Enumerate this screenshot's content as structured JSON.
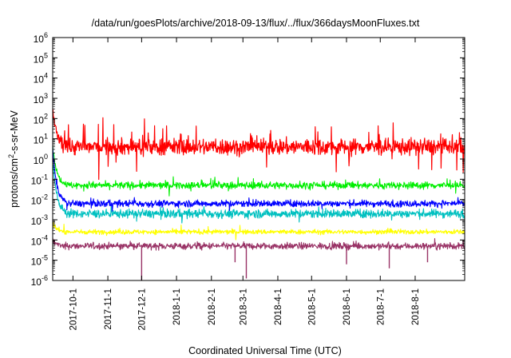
{
  "chart_data": {
    "type": "line",
    "title": "/data/run/goesPlots/archive/2018-09-13/flux/../flux/366daysMoonFluxes.txt",
    "xlabel": "Coordinated Universal Time (UTC)",
    "ylabel_main": "protons/cm",
    "ylabel_sup": "2",
    "ylabel_rest": "-s-sr-MeV",
    "yscale": "log",
    "ylim_exp": [
      -6,
      6
    ],
    "ytick_exponents": [
      6,
      5,
      4,
      3,
      2,
      1,
      0,
      -1,
      -2,
      -3,
      -4,
      -5,
      -6
    ],
    "ytick_base": "10",
    "x_range_days": [
      0,
      366
    ],
    "xtick_labels": [
      "2017-10-1",
      "2017-11-1",
      "2017-12-1",
      "2018-1-1",
      "2018-2-1",
      "2018-3-1",
      "2018-4-1",
      "2018-5-1",
      "2018-6-1",
      "2018-7-1",
      "2018-8-1"
    ],
    "xtick_days": [
      18,
      49,
      79,
      110,
      141,
      169,
      200,
      230,
      261,
      291,
      322
    ],
    "grid": false,
    "legend": "none",
    "series": [
      {
        "color": "#ff0000",
        "baseline_log10": 0.6,
        "noise": 0.35,
        "spike_prob": 0.04,
        "spike_amp": 0.9,
        "onset_log10": 2.5
      },
      {
        "color": "#00ee00",
        "baseline_log10": -1.3,
        "noise": 0.15,
        "spike_prob": 0.02,
        "spike_amp": 0.25,
        "onset_log10": 0.7
      },
      {
        "color": "#00c0c0",
        "baseline_log10": -2.7,
        "noise": 0.18,
        "spike_prob": 0.02,
        "spike_amp": 0.3,
        "onset_log10": 0.0
      },
      {
        "color": "#0000ff",
        "baseline_log10": -2.2,
        "noise": 0.14,
        "spike_prob": 0.02,
        "spike_amp": 0.25,
        "onset_log10": 0.5
      },
      {
        "color": "#ffff00",
        "baseline_log10": -3.6,
        "noise": 0.1,
        "spike_prob": 0.01,
        "spike_amp": 0.2,
        "onset_log10": -3.2
      },
      {
        "color": "#993366",
        "baseline_log10": -4.3,
        "noise": 0.14,
        "spike_prob": 0.01,
        "spike_amp": 0.2,
        "onset_log10": -4.0
      }
    ],
    "dips": [
      {
        "day": 79,
        "log10": -6.0
      },
      {
        "day": 162,
        "log10": -5.1
      },
      {
        "day": 172,
        "log10": -5.9
      },
      {
        "day": 261,
        "log10": -5.2
      },
      {
        "day": 299,
        "log10": -5.4
      },
      {
        "day": 333,
        "log10": -5.1
      }
    ]
  }
}
